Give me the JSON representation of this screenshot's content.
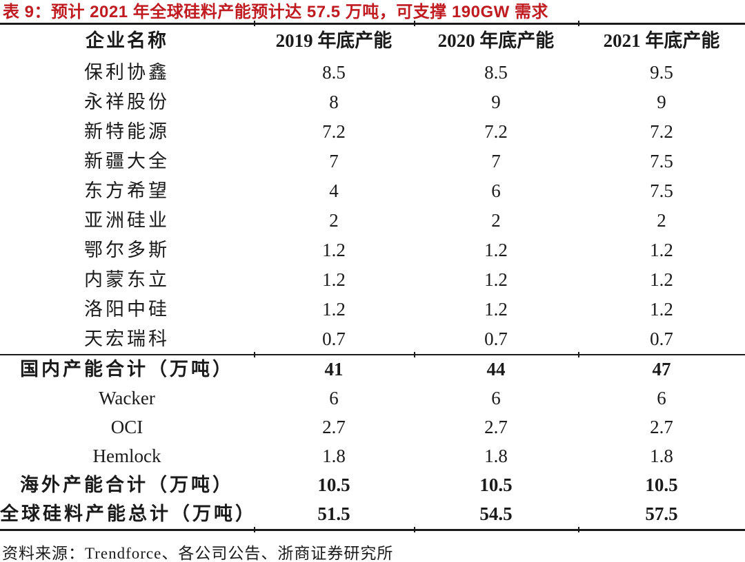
{
  "colors": {
    "title": "#bf1b20",
    "rule": "#1a1a1a",
    "text": "#1a1a1a"
  },
  "title": "表 9：预计 2021 年全球硅料产能预计达 57.5 万吨，可支撑 190GW 需求",
  "table": {
    "columns": [
      "企业名称",
      "2019 年底产能",
      "2020 年底产能",
      "2021 年底产能"
    ],
    "groups": [
      {
        "name": "domestic-companies",
        "rows": [
          {
            "label": "保利协鑫",
            "values": [
              "8.5",
              "8.5",
              "9.5"
            ],
            "bold": false
          },
          {
            "label": "永祥股份",
            "values": [
              "8",
              "9",
              "9"
            ],
            "bold": false
          },
          {
            "label": "新特能源",
            "values": [
              "7.2",
              "7.2",
              "7.2"
            ],
            "bold": false
          },
          {
            "label": "新疆大全",
            "values": [
              "7",
              "7",
              "7.5"
            ],
            "bold": false
          },
          {
            "label": "东方希望",
            "values": [
              "4",
              "6",
              "7.5"
            ],
            "bold": false
          },
          {
            "label": "亚洲硅业",
            "values": [
              "2",
              "2",
              "2"
            ],
            "bold": false
          },
          {
            "label": "鄂尔多斯",
            "values": [
              "1.2",
              "1.2",
              "1.2"
            ],
            "bold": false
          },
          {
            "label": "内蒙东立",
            "values": [
              "1.2",
              "1.2",
              "1.2"
            ],
            "bold": false
          },
          {
            "label": "洛阳中硅",
            "values": [
              "1.2",
              "1.2",
              "1.2"
            ],
            "bold": false
          },
          {
            "label": "天宏瑞科",
            "values": [
              "0.7",
              "0.7",
              "0.7"
            ],
            "bold": false
          }
        ]
      },
      {
        "name": "totals-and-overseas",
        "rows": [
          {
            "label": "国内产能合计（万吨）",
            "values": [
              "41",
              "44",
              "47"
            ],
            "bold": true
          },
          {
            "label": "Wacker",
            "values": [
              "6",
              "6",
              "6"
            ],
            "bold": false
          },
          {
            "label": "OCI",
            "values": [
              "2.7",
              "2.7",
              "2.7"
            ],
            "bold": false
          },
          {
            "label": "Hemlock",
            "values": [
              "1.8",
              "1.8",
              "1.8"
            ],
            "bold": false
          },
          {
            "label": "海外产能合计（万吨）",
            "values": [
              "10.5",
              "10.5",
              "10.5"
            ],
            "bold": true
          },
          {
            "label": "全球硅料产能总计（万吨）",
            "values": [
              "51.5",
              "54.5",
              "57.5"
            ],
            "bold": true
          }
        ]
      }
    ]
  },
  "source": "资料来源：Trendforce、各公司公告、浙商证券研究所"
}
